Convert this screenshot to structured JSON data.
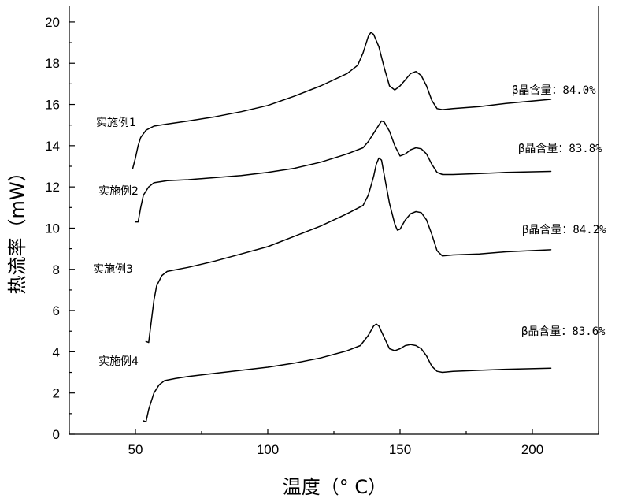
{
  "chart_data": {
    "type": "line",
    "xlabel": "温度（° C）",
    "ylabel": "热流率（mW）",
    "xlim": [
      25,
      225
    ],
    "ylim": [
      0,
      20.8
    ],
    "xticks": [
      50,
      100,
      150,
      200
    ],
    "yticks": [
      0,
      2,
      4,
      6,
      8,
      10,
      12,
      14,
      16,
      18,
      20
    ],
    "grid": false,
    "series": [
      {
        "name": "实施例1",
        "annotation": "β晶含量：84.0%",
        "points": [
          [
            49,
            12.9
          ],
          [
            50,
            13.4
          ],
          [
            51,
            14.0
          ],
          [
            52,
            14.4
          ],
          [
            54,
            14.75
          ],
          [
            57,
            14.95
          ],
          [
            62,
            15.05
          ],
          [
            70,
            15.2
          ],
          [
            80,
            15.4
          ],
          [
            90,
            15.65
          ],
          [
            100,
            15.95
          ],
          [
            110,
            16.4
          ],
          [
            120,
            16.9
          ],
          [
            130,
            17.5
          ],
          [
            134,
            17.9
          ],
          [
            136,
            18.5
          ],
          [
            138,
            19.3
          ],
          [
            139,
            19.5
          ],
          [
            140,
            19.4
          ],
          [
            142,
            18.8
          ],
          [
            144,
            17.8
          ],
          [
            146,
            16.9
          ],
          [
            148,
            16.7
          ],
          [
            150,
            16.9
          ],
          [
            152,
            17.2
          ],
          [
            154,
            17.5
          ],
          [
            156,
            17.6
          ],
          [
            158,
            17.4
          ],
          [
            160,
            16.9
          ],
          [
            162,
            16.2
          ],
          [
            164,
            15.8
          ],
          [
            166,
            15.75
          ],
          [
            170,
            15.8
          ],
          [
            180,
            15.9
          ],
          [
            190,
            16.05
          ],
          [
            207,
            16.25
          ]
        ]
      },
      {
        "name": "实施例2",
        "annotation": "β晶含量：83.8%",
        "points": [
          [
            50,
            10.3
          ],
          [
            51,
            10.3
          ],
          [
            52,
            11.0
          ],
          [
            53,
            11.6
          ],
          [
            55,
            12.0
          ],
          [
            57,
            12.2
          ],
          [
            62,
            12.3
          ],
          [
            70,
            12.35
          ],
          [
            80,
            12.45
          ],
          [
            90,
            12.55
          ],
          [
            100,
            12.7
          ],
          [
            110,
            12.9
          ],
          [
            120,
            13.2
          ],
          [
            130,
            13.6
          ],
          [
            136,
            13.9
          ],
          [
            138,
            14.2
          ],
          [
            140,
            14.6
          ],
          [
            142,
            15.0
          ],
          [
            143,
            15.2
          ],
          [
            144,
            15.15
          ],
          [
            146,
            14.7
          ],
          [
            148,
            14.0
          ],
          [
            150,
            13.5
          ],
          [
            152,
            13.6
          ],
          [
            154,
            13.8
          ],
          [
            156,
            13.9
          ],
          [
            158,
            13.85
          ],
          [
            160,
            13.6
          ],
          [
            162,
            13.1
          ],
          [
            164,
            12.7
          ],
          [
            166,
            12.6
          ],
          [
            170,
            12.6
          ],
          [
            180,
            12.65
          ],
          [
            190,
            12.7
          ],
          [
            207,
            12.75
          ]
        ]
      },
      {
        "name": "实施例3",
        "annotation": "β晶含量：84.2%",
        "points": [
          [
            54,
            4.5
          ],
          [
            55,
            4.45
          ],
          [
            56,
            5.5
          ],
          [
            57,
            6.5
          ],
          [
            58,
            7.2
          ],
          [
            60,
            7.7
          ],
          [
            62,
            7.9
          ],
          [
            70,
            8.1
          ],
          [
            80,
            8.4
          ],
          [
            90,
            8.75
          ],
          [
            100,
            9.1
          ],
          [
            110,
            9.6
          ],
          [
            120,
            10.1
          ],
          [
            130,
            10.7
          ],
          [
            136,
            11.1
          ],
          [
            138,
            11.6
          ],
          [
            140,
            12.5
          ],
          [
            141,
            13.1
          ],
          [
            142,
            13.4
          ],
          [
            143,
            13.3
          ],
          [
            144,
            12.6
          ],
          [
            146,
            11.2
          ],
          [
            148,
            10.2
          ],
          [
            149,
            9.9
          ],
          [
            150,
            9.95
          ],
          [
            152,
            10.4
          ],
          [
            154,
            10.7
          ],
          [
            156,
            10.8
          ],
          [
            158,
            10.75
          ],
          [
            160,
            10.4
          ],
          [
            162,
            9.7
          ],
          [
            164,
            8.9
          ],
          [
            166,
            8.65
          ],
          [
            170,
            8.7
          ],
          [
            180,
            8.75
          ],
          [
            190,
            8.85
          ],
          [
            207,
            8.95
          ]
        ]
      },
      {
        "name": "实施例4",
        "annotation": "β晶含量：83.6%",
        "points": [
          [
            53,
            0.65
          ],
          [
            54,
            0.6
          ],
          [
            55,
            1.2
          ],
          [
            57,
            2.0
          ],
          [
            59,
            2.4
          ],
          [
            61,
            2.6
          ],
          [
            65,
            2.7
          ],
          [
            70,
            2.8
          ],
          [
            80,
            2.95
          ],
          [
            90,
            3.1
          ],
          [
            100,
            3.25
          ],
          [
            110,
            3.45
          ],
          [
            120,
            3.7
          ],
          [
            130,
            4.05
          ],
          [
            135,
            4.3
          ],
          [
            138,
            4.8
          ],
          [
            140,
            5.25
          ],
          [
            141,
            5.35
          ],
          [
            142,
            5.25
          ],
          [
            144,
            4.7
          ],
          [
            146,
            4.15
          ],
          [
            148,
            4.05
          ],
          [
            150,
            4.15
          ],
          [
            152,
            4.3
          ],
          [
            154,
            4.35
          ],
          [
            156,
            4.3
          ],
          [
            158,
            4.15
          ],
          [
            160,
            3.8
          ],
          [
            162,
            3.3
          ],
          [
            164,
            3.05
          ],
          [
            166,
            3.0
          ],
          [
            170,
            3.05
          ],
          [
            180,
            3.1
          ],
          [
            190,
            3.15
          ],
          [
            207,
            3.2
          ]
        ]
      }
    ]
  }
}
